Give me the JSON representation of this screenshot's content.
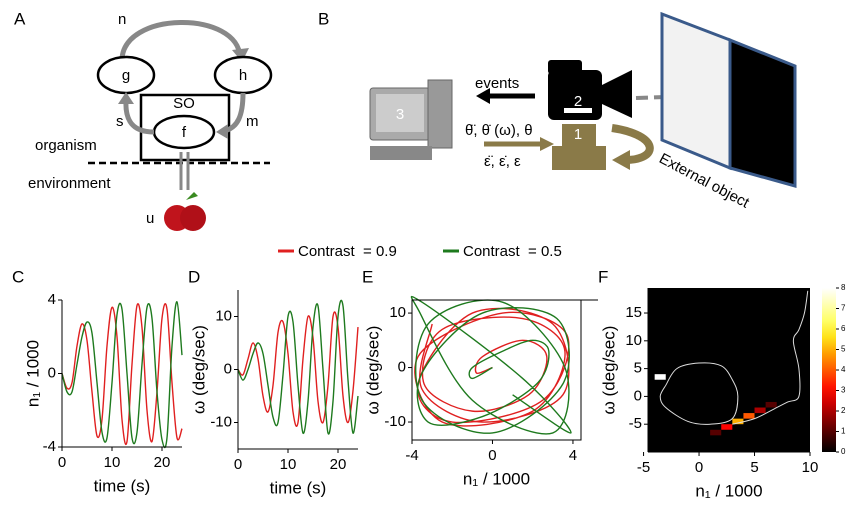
{
  "diagram_a": {
    "label": "A",
    "n": "n",
    "g": "g",
    "h": "h",
    "so": "SO",
    "s": "s",
    "m": "m",
    "f": "f",
    "organism": "organism",
    "environment": "environment",
    "u": "u"
  },
  "diagram_b": {
    "label": "B",
    "events": "events",
    "computer": "3",
    "camera": "2",
    "motor": "1",
    "angles": "θ̈, θ̇ (ω), θ",
    "errors": "ε̈, ε̇, ε",
    "object": "External object"
  },
  "chart_data": [
    {
      "type": "line",
      "panel": "C",
      "xlabel": "time (s)",
      "ylabel": "n₁ / 1000",
      "xlim": [
        0,
        24
      ],
      "ylim": [
        -4,
        4
      ],
      "xticks": [
        0,
        10,
        20
      ],
      "yticks": [
        -4,
        0,
        4
      ],
      "x": [
        0,
        1,
        2,
        3,
        4,
        5,
        6,
        7,
        8,
        9,
        10,
        11,
        12,
        13,
        14,
        15,
        16,
        17,
        18,
        19,
        20,
        21,
        22,
        23,
        24
      ],
      "series": [
        {
          "name": "Contrast  = 0.9",
          "color": "#e02020",
          "values": [
            0,
            -0.8,
            -0.5,
            1.5,
            2.7,
            1.8,
            -1.0,
            -3.4,
            -2.5,
            1.5,
            3.6,
            2.0,
            -2.5,
            -3.7,
            0.5,
            3.7,
            2.5,
            -2.0,
            -3.7,
            -1,
            3.0,
            3.5,
            -0.5,
            -3.5,
            -3.0
          ]
        },
        {
          "name": "Contrast  = 0.5",
          "color": "#1e7a1e",
          "values": [
            0,
            -1.0,
            -1.0,
            0.5,
            2.0,
            2.8,
            2.2,
            -0.5,
            -3.2,
            -3.5,
            -0.5,
            3.2,
            3.5,
            0,
            -3.5,
            -3.2,
            0.5,
            3.6,
            3.0,
            -1,
            -3.6,
            -3.5,
            1.5,
            3.9,
            1.0
          ]
        }
      ]
    },
    {
      "type": "line",
      "panel": "D",
      "xlabel": "time (s)",
      "ylabel": "ω (deg/sec)",
      "xlim": [
        0,
        24
      ],
      "ylim": [
        -15,
        15
      ],
      "xticks": [
        0,
        10,
        20
      ],
      "yticks": [
        -10,
        0,
        10
      ],
      "x": [
        0,
        1,
        2,
        3,
        4,
        5,
        6,
        7,
        8,
        9,
        10,
        11,
        12,
        13,
        14,
        15,
        16,
        17,
        18,
        19,
        20,
        21,
        22,
        23,
        24
      ],
      "series": [
        {
          "color": "#e02020",
          "values": [
            0,
            -1,
            2,
            5,
            2,
            -5,
            -8,
            -3,
            7,
            9,
            3,
            -8,
            -10,
            2,
            10,
            6,
            -6,
            -10,
            -3,
            10,
            8,
            -5,
            -10,
            -4,
            8
          ]
        },
        {
          "color": "#1e7a1e",
          "values": [
            0,
            -2,
            0,
            3,
            5,
            3,
            -3,
            -9,
            -10,
            -1,
            10,
            9,
            -3,
            -12,
            -6,
            8,
            12,
            0,
            -12,
            -6,
            10,
            12,
            -2,
            -12,
            -5
          ]
        }
      ]
    },
    {
      "type": "phase",
      "panel": "E",
      "xlabel": "n₁ / 1000",
      "ylabel": "ω (deg/sec)",
      "xlim": [
        -4,
        4.4
      ],
      "ylim": [
        -13.3,
        12.4
      ],
      "xticks": [
        -4,
        0,
        4
      ],
      "yticks": [
        -10,
        0,
        10
      ],
      "series": [
        {
          "color": "#e02020",
          "x": [
            0,
            -0.8,
            -0.5,
            1.5,
            2.7,
            1.8,
            -1.0,
            -3.4,
            -2.5,
            1.5,
            3.6,
            2.0,
            -2.5,
            -3.7,
            0.5,
            3.7,
            2.5,
            -2.0,
            -3.7,
            -1,
            3.0,
            3.5,
            -0.5,
            -3.5,
            -3.0
          ],
          "values": [
            0,
            -1,
            2,
            5,
            2,
            -5,
            -8,
            -3,
            7,
            9,
            3,
            -8,
            -10,
            2,
            10,
            6,
            -6,
            -10,
            -3,
            10,
            8,
            -5,
            -10,
            -4,
            8
          ]
        },
        {
          "color": "#1e7a1e",
          "x": [
            0,
            -1.0,
            -1.0,
            0.5,
            2.0,
            2.8,
            2.2,
            -0.5,
            -3.2,
            -3.5,
            -0.5,
            3.2,
            3.5,
            0,
            -3.5,
            -3.2,
            0.5,
            3.6,
            3.0,
            -1,
            -3.6,
            -3.5,
            1.5,
            3.9,
            1.0
          ],
          "values": [
            0,
            -2,
            0,
            3,
            5,
            3,
            -3,
            -9,
            -10,
            -1,
            10,
            9,
            -3,
            -12,
            -6,
            8,
            12,
            0,
            -12,
            -6,
            10,
            12,
            -2,
            -12,
            -5
          ]
        }
      ]
    },
    {
      "type": "heatmap",
      "panel": "F",
      "xlabel": "n₁ / 1000",
      "ylabel": "ω (deg/sec)",
      "xlim": [
        -4.6,
        10
      ],
      "ylim": [
        -10,
        19.5
      ],
      "xticks": [
        -5,
        0,
        5,
        10
      ],
      "yticks": [
        -5,
        0,
        5,
        10,
        15
      ],
      "clim": [
        0,
        8
      ],
      "cticks": [
        0,
        1,
        2,
        3,
        4,
        5,
        6,
        7,
        8
      ],
      "cells": [
        {
          "x": 3,
          "y": -5,
          "v": 5
        },
        {
          "x": 4,
          "y": -4,
          "v": 4
        },
        {
          "x": 2,
          "y": -6,
          "v": 3
        },
        {
          "x": 5,
          "y": -3,
          "v": 2
        },
        {
          "x": 6,
          "y": -2,
          "v": 1
        },
        {
          "x": 1,
          "y": -7,
          "v": 1
        },
        {
          "x": -4,
          "y": 3,
          "v": 8
        }
      ],
      "series": [
        {
          "color": "#dddddd",
          "x": [
            -3,
            -2,
            0,
            2,
            3,
            3.5,
            3,
            1,
            -1,
            -3,
            -3.5,
            -3
          ],
          "values": [
            2,
            5,
            6,
            5.5,
            3,
            0,
            -4,
            -5,
            -4.5,
            -2,
            0,
            2
          ]
        },
        {
          "color": "#dddddd",
          "x": [
            3,
            5,
            7,
            8,
            9,
            9,
            8.5,
            9,
            9.5,
            9.8
          ],
          "values": [
            -5,
            -4,
            -2,
            -1,
            0,
            5,
            10,
            12,
            15,
            19
          ]
        }
      ]
    }
  ]
}
